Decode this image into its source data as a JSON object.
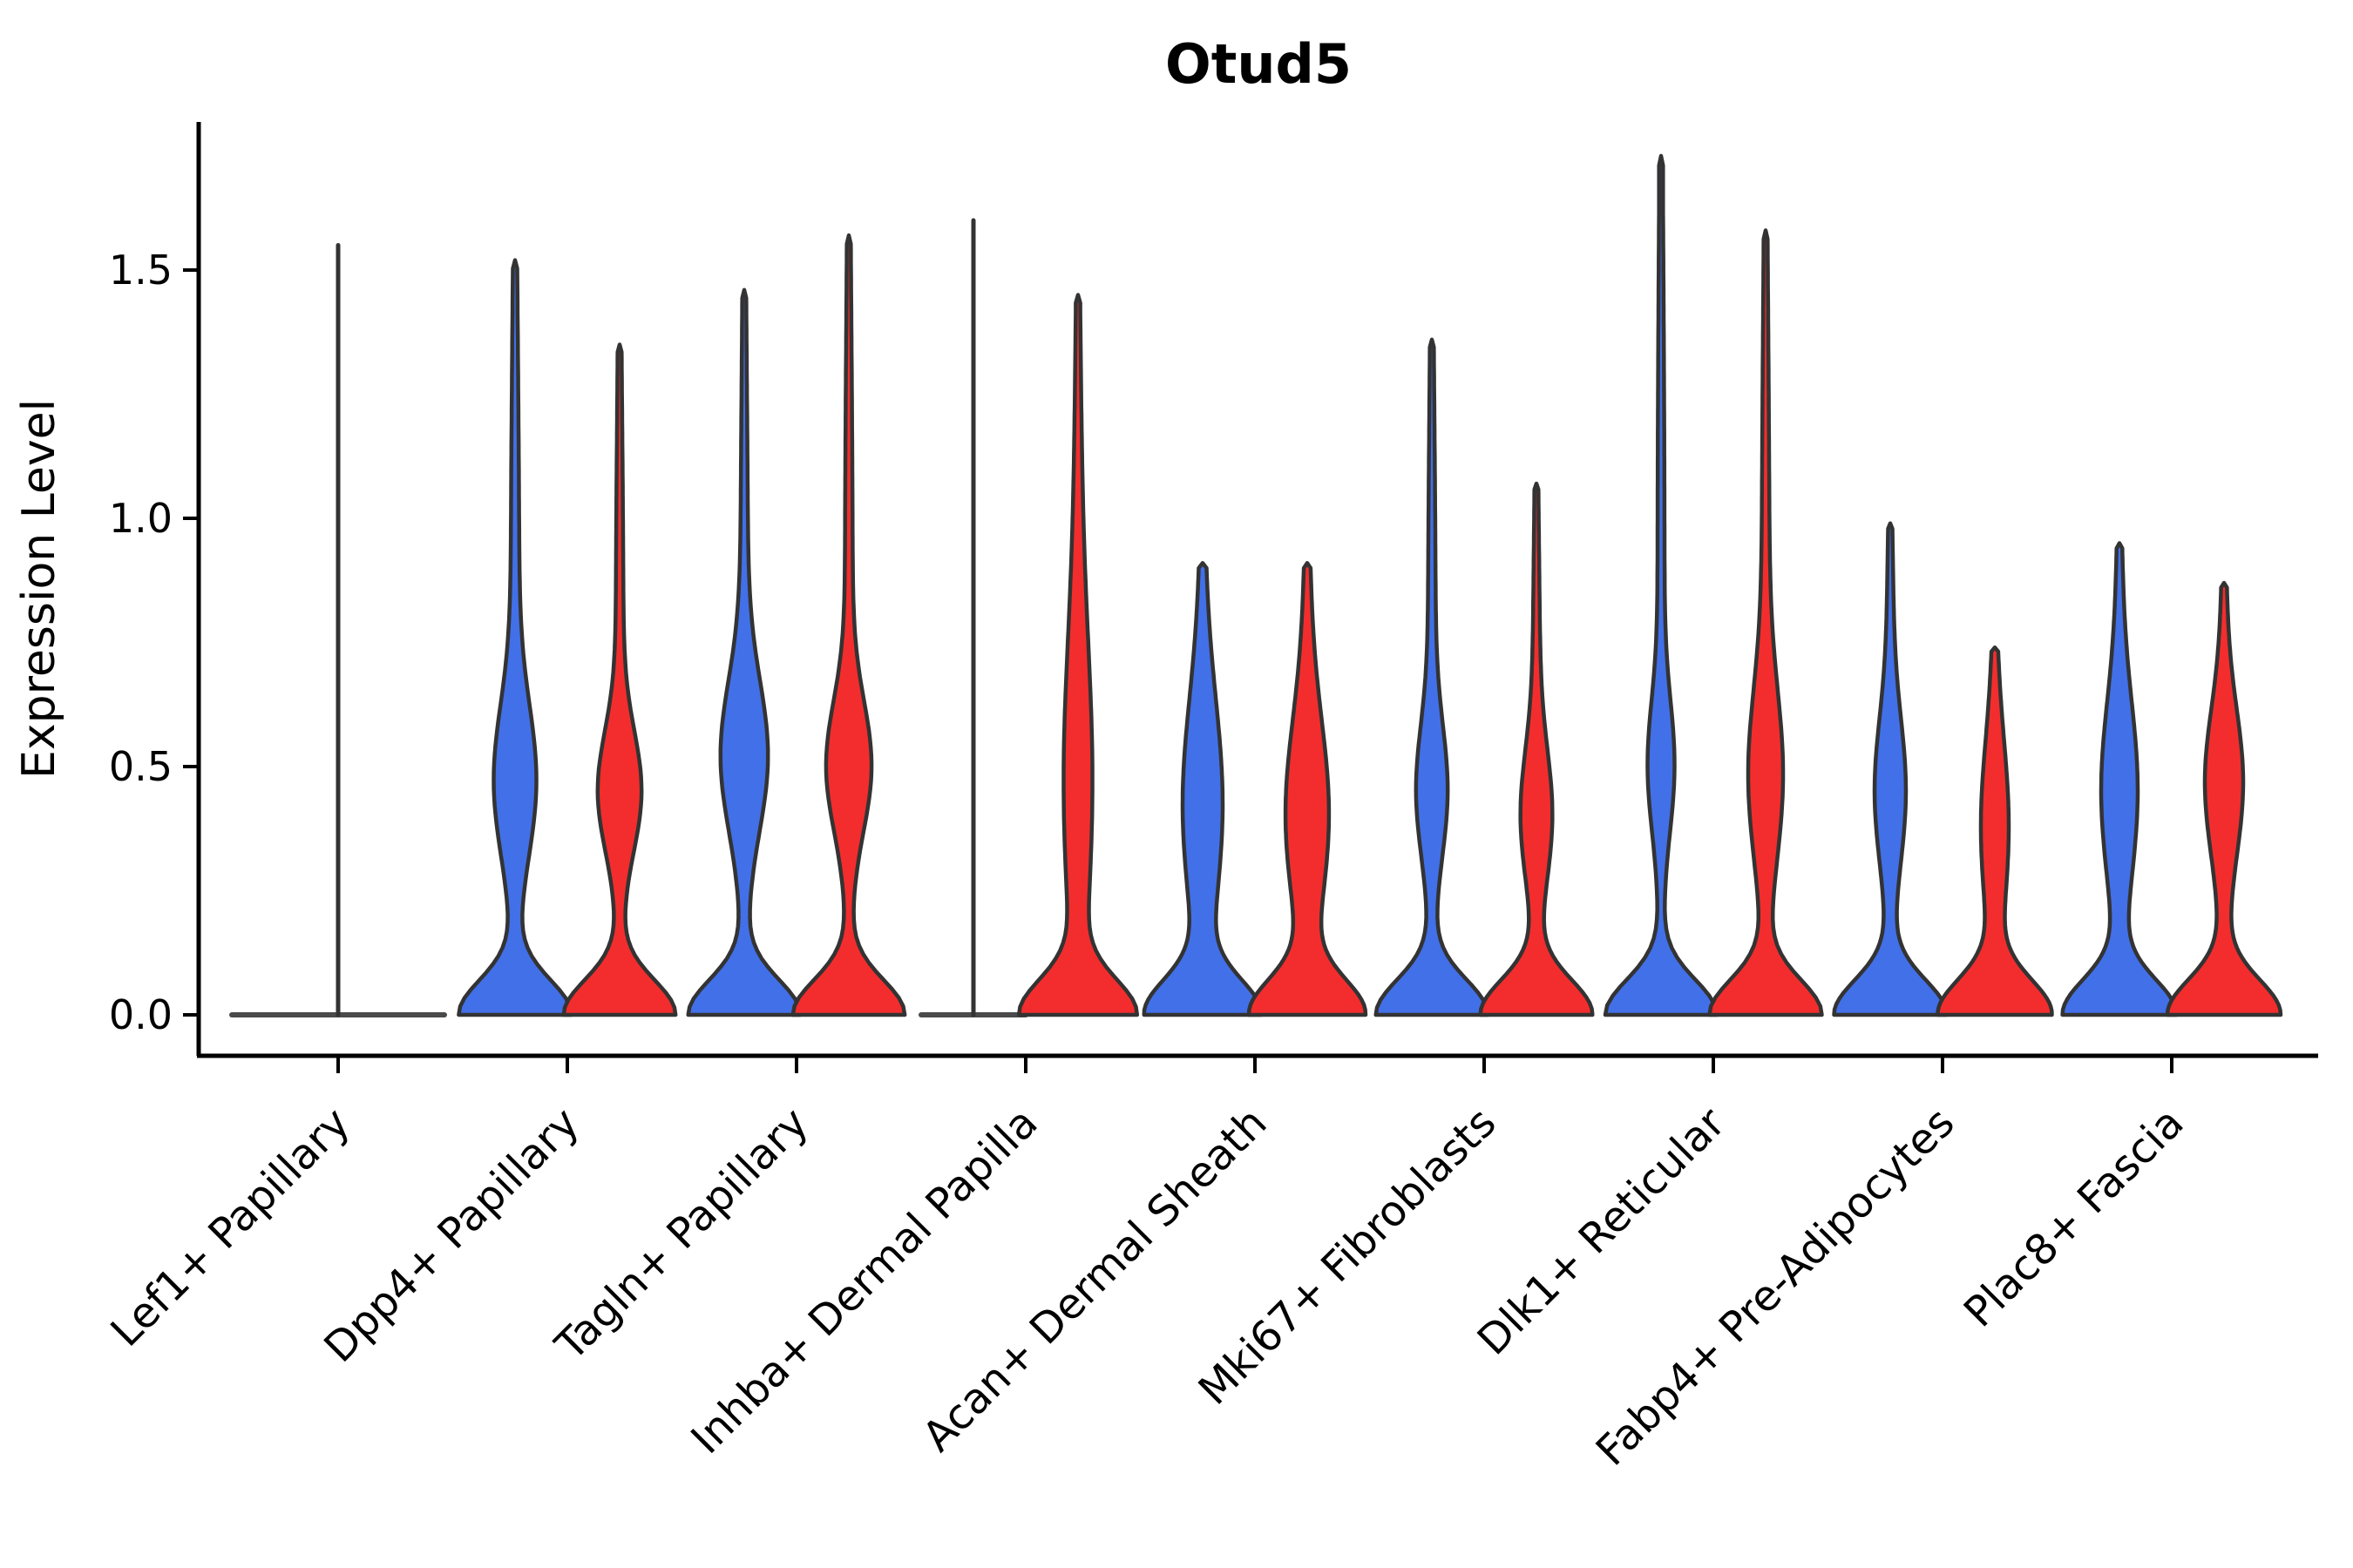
{
  "chart_data": {
    "type": "violin",
    "title": "Otud5",
    "ylabel": "Expression Level",
    "ylim": [
      -0.08,
      1.8
    ],
    "yticks": [
      0.0,
      0.5,
      1.0,
      1.5
    ],
    "ytick_labels": [
      "0.0",
      "0.5",
      "1.0",
      "1.5"
    ],
    "categories": [
      "Lef1+ Papillary",
      "Dpp4+ Papillary",
      "Tagln+ Papillary",
      "Inhba+ Dermal Papilla",
      "Acan+ Dermal Sheath",
      "Mki67+ Fibroblasts",
      "Dlk1+ Reticular",
      "Fabp4+ Pre-Adipocytes",
      "Plac8+ Fascia"
    ],
    "grid": false,
    "legend": "none",
    "split_colors": {
      "left": "#4270E8",
      "right": "#F32D2D"
    },
    "outline_color": "#333333",
    "violins": [
      {
        "category": "Lef1+ Papillary",
        "left": {
          "form": "flat",
          "max": 1.55,
          "halfspan": 122,
          "offset": 0
        },
        "right": null
      },
      {
        "category": "Dpp4+ Papillary",
        "left": {
          "form": "kde",
          "max": 1.52,
          "base_hw": 62,
          "base_sigma": 0.07,
          "bulge_hw": 20,
          "bulge_mu": 0.47,
          "bulge_sigma": 0.15,
          "tail_hw": 5
        },
        "right": {
          "form": "kde",
          "max": 1.35,
          "base_hw": 62,
          "base_sigma": 0.07,
          "bulge_hw": 21,
          "bulge_mu": 0.45,
          "bulge_sigma": 0.12,
          "tail_hw": 4.5
        }
      },
      {
        "category": "Tagln+ Papillary",
        "left": {
          "form": "kde",
          "max": 1.46,
          "base_hw": 62,
          "base_sigma": 0.07,
          "bulge_hw": 23,
          "bulge_mu": 0.52,
          "bulge_sigma": 0.15,
          "tail_hw": 4.5
        },
        "right": {
          "form": "kde",
          "max": 1.57,
          "base_hw": 62,
          "base_sigma": 0.07,
          "bulge_hw": 22,
          "bulge_mu": 0.5,
          "bulge_sigma": 0.13,
          "tail_hw": 4.5
        }
      },
      {
        "category": "Inhba+ Dermal Papilla",
        "left": {
          "form": "flat",
          "max": 1.6,
          "halfspan": 60,
          "offset": -60
        },
        "right": {
          "form": "kde",
          "max": 1.45,
          "base_hw": 62,
          "base_sigma": 0.07,
          "bulge_hw": 12,
          "bulge_mu": 0.45,
          "bulge_sigma": 0.28,
          "tail_hw": 5
        }
      },
      {
        "category": "Acan+ Dermal Sheath",
        "left": {
          "form": "kde",
          "max": 0.91,
          "base_hw": 62,
          "base_sigma": 0.07,
          "bulge_hw": 16,
          "bulge_mu": 0.42,
          "bulge_sigma": 0.2,
          "tail_hw": 7
        },
        "right": {
          "form": "kde",
          "max": 0.91,
          "base_hw": 62,
          "base_sigma": 0.07,
          "bulge_hw": 18,
          "bulge_mu": 0.4,
          "bulge_sigma": 0.18,
          "tail_hw": 7
        }
      },
      {
        "category": "Mki67+ Fibroblasts",
        "left": {
          "form": "kde",
          "max": 1.36,
          "base_hw": 62,
          "base_sigma": 0.07,
          "bulge_hw": 14,
          "bulge_mu": 0.45,
          "bulge_sigma": 0.13,
          "tail_hw": 4.5
        },
        "right": {
          "form": "kde",
          "max": 1.07,
          "base_hw": 62,
          "base_sigma": 0.07,
          "bulge_hw": 14,
          "bulge_mu": 0.4,
          "bulge_sigma": 0.13,
          "tail_hw": 4.5
        }
      },
      {
        "category": "Dlk1+ Reticular",
        "left": {
          "form": "kde",
          "max": 1.73,
          "base_hw": 62,
          "base_sigma": 0.07,
          "bulge_hw": 12,
          "bulge_mu": 0.5,
          "bulge_sigma": 0.13,
          "tail_hw": 4
        },
        "right": {
          "form": "kde",
          "max": 1.58,
          "base_hw": 62,
          "base_sigma": 0.07,
          "bulge_hw": 16,
          "bulge_mu": 0.48,
          "bulge_sigma": 0.17,
          "tail_hw": 4.5
        }
      },
      {
        "category": "Fabp4+ Pre-Adipocytes",
        "left": {
          "form": "kde",
          "max": 0.99,
          "base_hw": 62,
          "base_sigma": 0.07,
          "bulge_hw": 13,
          "bulge_mu": 0.45,
          "bulge_sigma": 0.14,
          "tail_hw": 5
        },
        "right": {
          "form": "kde",
          "max": 0.74,
          "base_hw": 62,
          "base_sigma": 0.07,
          "bulge_hw": 10,
          "bulge_mu": 0.38,
          "bulge_sigma": 0.16,
          "tail_hw": 6
        }
      },
      {
        "category": "Plac8+ Fascia",
        "left": {
          "form": "kde",
          "max": 0.95,
          "base_hw": 62,
          "base_sigma": 0.07,
          "bulge_hw": 15,
          "bulge_mu": 0.45,
          "bulge_sigma": 0.17,
          "tail_hw": 6
        },
        "right": {
          "form": "kde",
          "max": 0.87,
          "base_hw": 62,
          "base_sigma": 0.07,
          "bulge_hw": 16,
          "bulge_mu": 0.47,
          "bulge_sigma": 0.14,
          "tail_hw": 6
        }
      }
    ]
  }
}
